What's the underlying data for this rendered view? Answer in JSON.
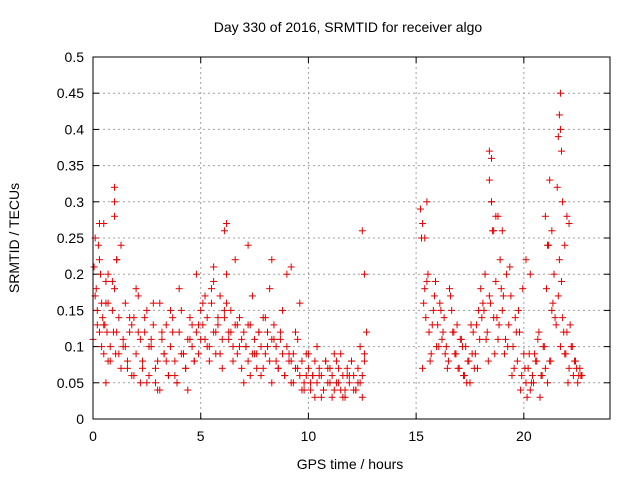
{
  "colors": {
    "series": "#e00000",
    "axis": "#000000",
    "grid": "#a0a0a0",
    "background": "#ffffff"
  },
  "chart_data": {
    "type": "scatter",
    "title": "Day 330 of 2016, SRMTID for receiver algo",
    "xlabel": "GPS time / hours",
    "ylabel": "SRMTID / TECUs",
    "xlim": [
      0,
      24
    ],
    "ylim": [
      0,
      0.5
    ],
    "grid": true,
    "legend": "none",
    "marker": "plus",
    "xticks": [
      {
        "value": 0,
        "label": "0"
      },
      {
        "value": 5,
        "label": "5"
      },
      {
        "value": 10,
        "label": "10"
      },
      {
        "value": 15,
        "label": "15"
      },
      {
        "value": 20,
        "label": "20"
      }
    ],
    "yticks": [
      {
        "value": 0,
        "label": "0"
      },
      {
        "value": 0.05,
        "label": "0.05"
      },
      {
        "value": 0.1,
        "label": "0.1"
      },
      {
        "value": 0.15,
        "label": "0.15"
      },
      {
        "value": 0.2,
        "label": "0.2"
      },
      {
        "value": 0.25,
        "label": "0.25"
      },
      {
        "value": 0.3,
        "label": "0.3"
      },
      {
        "value": 0.35,
        "label": "0.35"
      },
      {
        "value": 0.4,
        "label": "0.4"
      },
      {
        "value": 0.45,
        "label": "0.45"
      },
      {
        "value": 0.5,
        "label": "0.5"
      }
    ],
    "series": [
      {
        "name": "SRMTID",
        "x": [
          0.0,
          0.05,
          0.1,
          0.15,
          0.2,
          0.25,
          0.3,
          0.35,
          0.4,
          0.45,
          0.5,
          0.55,
          0.6,
          0.65,
          0.7,
          0.8,
          0.9,
          0.95,
          1.0,
          1.05,
          1.1,
          1.2,
          1.3,
          1.4,
          1.5,
          1.6,
          1.7,
          1.8,
          1.9,
          2.0,
          2.1,
          2.2,
          2.3,
          2.4,
          2.5,
          2.6,
          2.7,
          2.8,
          2.9,
          3.0,
          3.1,
          3.2,
          3.3,
          3.4,
          3.5,
          3.6,
          3.7,
          3.8,
          3.9,
          4.0,
          4.1,
          4.2,
          4.3,
          4.4,
          4.5,
          4.6,
          4.7,
          4.8,
          4.9,
          5.0,
          5.1,
          5.2,
          5.3,
          5.4,
          5.5,
          5.6,
          5.7,
          5.8,
          5.9,
          6.0,
          6.1,
          6.2,
          6.3,
          6.4,
          6.5,
          6.6,
          6.7,
          6.8,
          6.9,
          7.0,
          7.1,
          7.2,
          7.3,
          7.4,
          7.5,
          7.6,
          7.7,
          7.8,
          7.9,
          8.0,
          8.1,
          8.2,
          8.3,
          8.4,
          8.5,
          8.6,
          8.7,
          8.8,
          8.9,
          9.0,
          9.1,
          9.2,
          9.3,
          9.4,
          9.5,
          9.6,
          9.7,
          9.8,
          9.9,
          10.0,
          10.1,
          10.2,
          10.3,
          10.4,
          10.5,
          10.6,
          10.7,
          10.8,
          10.9,
          11.0,
          11.1,
          11.2,
          11.3,
          11.4,
          11.5,
          11.6,
          11.7,
          11.8,
          11.9,
          12.0,
          12.1,
          12.2,
          12.3,
          12.4,
          12.5,
          12.6,
          12.7,
          0.1,
          0.3,
          0.5,
          0.7,
          0.9,
          1.1,
          1.3,
          1.5,
          1.7,
          1.9,
          2.1,
          2.3,
          2.5,
          2.7,
          2.9,
          3.1,
          3.3,
          3.5,
          3.7,
          3.9,
          4.1,
          4.3,
          4.5,
          4.7,
          4.9,
          5.1,
          5.3,
          5.5,
          5.7,
          5.9,
          6.1,
          6.3,
          6.5,
          6.7,
          6.9,
          7.1,
          7.3,
          7.5,
          7.7,
          7.9,
          8.1,
          8.3,
          8.5,
          8.7,
          8.9,
          9.1,
          9.3,
          9.5,
          9.7,
          9.9,
          10.1,
          10.3,
          10.5,
          10.7,
          10.9,
          11.1,
          11.3,
          11.5,
          11.7,
          11.9,
          12.1,
          12.3,
          12.5,
          0.2,
          0.4,
          0.6,
          0.8,
          1.0,
          1.2,
          1.4,
          1.6,
          1.8,
          2.0,
          2.2,
          2.4,
          2.6,
          2.8,
          3.0,
          3.2,
          3.4,
          3.6,
          3.8,
          4.0,
          4.2,
          4.4,
          4.6,
          4.8,
          5.0,
          5.2,
          5.4,
          5.6,
          5.8,
          6.0,
          6.2,
          6.4,
          6.6,
          6.8,
          7.0,
          7.2,
          7.4,
          7.6,
          7.8,
          8.0,
          8.2,
          8.4,
          8.6,
          8.8,
          9.0,
          9.2,
          9.4,
          9.6,
          9.8,
          10.0,
          10.2,
          10.4,
          10.6,
          10.8,
          11.0,
          11.2,
          11.4,
          11.6,
          11.8,
          12.0,
          12.2,
          12.4,
          12.6,
          0.3,
          0.7,
          1.0,
          1.0,
          1.1,
          0.6,
          0.5,
          5.6,
          6.1,
          6.2,
          7.2,
          8.3,
          9.2,
          12.5,
          12.6,
          15.2,
          15.3,
          15.4,
          15.5,
          15.6,
          15.7,
          15.8,
          15.9,
          16.0,
          16.1,
          16.2,
          16.3,
          16.4,
          16.5,
          16.6,
          16.7,
          16.8,
          16.9,
          17.0,
          17.1,
          17.2,
          17.3,
          17.4,
          17.5,
          17.6,
          17.7,
          17.8,
          17.9,
          18.0,
          18.1,
          18.2,
          18.3,
          18.4,
          18.5,
          18.6,
          18.7,
          18.8,
          18.9,
          19.0,
          19.1,
          19.2,
          19.3,
          19.4,
          19.5,
          19.6,
          19.7,
          19.8,
          19.9,
          20.0,
          20.1,
          20.2,
          20.3,
          20.4,
          20.5,
          20.6,
          20.7,
          20.8,
          20.9,
          21.0,
          21.1,
          21.2,
          21.3,
          21.4,
          21.5,
          21.6,
          21.7,
          21.8,
          21.9,
          22.0,
          22.1,
          22.2,
          22.3,
          22.4,
          22.5,
          22.6,
          22.7,
          15.25,
          15.45,
          15.65,
          15.85,
          16.05,
          16.25,
          16.45,
          16.65,
          16.85,
          17.05,
          17.25,
          17.45,
          17.65,
          17.85,
          18.05,
          18.25,
          18.45,
          18.65,
          18.85,
          19.05,
          19.25,
          19.45,
          19.65,
          19.85,
          20.05,
          20.25,
          20.45,
          20.65,
          20.85,
          21.05,
          21.25,
          21.45,
          21.65,
          21.85,
          22.05,
          22.25,
          22.45,
          22.65,
          15.35,
          15.55,
          15.75,
          15.95,
          16.15,
          16.35,
          16.55,
          16.75,
          16.95,
          17.15,
          17.35,
          17.55,
          17.75,
          17.95,
          18.15,
          18.35,
          18.55,
          18.75,
          18.95,
          19.15,
          19.35,
          19.55,
          19.75,
          19.95,
          20.15,
          20.35,
          20.55,
          20.75,
          20.95,
          21.15,
          21.35,
          21.55,
          21.75,
          21.95,
          22.15,
          22.35,
          22.55,
          15.3,
          15.4,
          15.5,
          18.4,
          18.5,
          18.5,
          18.6,
          18.7,
          18.4,
          18.8,
          19.0,
          21.2,
          21.3,
          21.6,
          21.65,
          21.7,
          21.7,
          21.75,
          21.8,
          21.9,
          22.0,
          22.1,
          20.1,
          20.3,
          21.1,
          21.0
        ],
        "y": [
          0.11,
          0.21,
          0.25,
          0.18,
          0.15,
          0.24,
          0.12,
          0.2,
          0.16,
          0.14,
          0.09,
          0.13,
          0.19,
          0.12,
          0.16,
          0.1,
          0.15,
          0.12,
          0.18,
          0.09,
          0.22,
          0.14,
          0.24,
          0.1,
          0.16,
          0.08,
          0.12,
          0.06,
          0.14,
          0.09,
          0.17,
          0.11,
          0.07,
          0.12,
          0.15,
          0.06,
          0.1,
          0.13,
          0.05,
          0.08,
          0.16,
          0.11,
          0.09,
          0.13,
          0.06,
          0.1,
          0.14,
          0.08,
          0.05,
          0.12,
          0.15,
          0.09,
          0.07,
          0.11,
          0.14,
          0.1,
          0.08,
          0.12,
          0.09,
          0.15,
          0.13,
          0.11,
          0.14,
          0.1,
          0.16,
          0.12,
          0.09,
          0.13,
          0.17,
          0.11,
          0.14,
          0.2,
          0.12,
          0.15,
          0.1,
          0.13,
          0.09,
          0.14,
          0.11,
          0.12,
          0.1,
          0.08,
          0.13,
          0.09,
          0.11,
          0.07,
          0.12,
          0.1,
          0.14,
          0.09,
          0.12,
          0.08,
          0.11,
          0.13,
          0.1,
          0.07,
          0.12,
          0.09,
          0.06,
          0.1,
          0.08,
          0.05,
          0.09,
          0.07,
          0.11,
          0.06,
          0.08,
          0.05,
          0.09,
          0.07,
          0.04,
          0.06,
          0.08,
          0.05,
          0.07,
          0.06,
          0.04,
          0.08,
          0.05,
          0.07,
          0.06,
          0.04,
          0.08,
          0.05,
          0.09,
          0.06,
          0.04,
          0.07,
          0.05,
          0.08,
          0.06,
          0.04,
          0.07,
          0.05,
          0.06,
          0.09,
          0.12,
          0.17,
          0.22,
          0.13,
          0.08,
          0.19,
          0.12,
          0.07,
          0.1,
          0.14,
          0.06,
          0.12,
          0.08,
          0.05,
          0.11,
          0.07,
          0.04,
          0.09,
          0.06,
          0.12,
          0.05,
          0.09,
          0.07,
          0.11,
          0.08,
          0.13,
          0.16,
          0.1,
          0.18,
          0.12,
          0.09,
          0.15,
          0.11,
          0.08,
          0.13,
          0.07,
          0.1,
          0.06,
          0.09,
          0.12,
          0.07,
          0.1,
          0.05,
          0.08,
          0.11,
          0.06,
          0.09,
          0.05,
          0.07,
          0.04,
          0.06,
          0.05,
          0.03,
          0.06,
          0.04,
          0.07,
          0.03,
          0.05,
          0.04,
          0.03,
          0.06,
          0.04,
          0.05,
          0.03,
          0.13,
          0.1,
          0.16,
          0.08,
          0.3,
          0.09,
          0.11,
          0.07,
          0.13,
          0.18,
          0.05,
          0.14,
          0.1,
          0.16,
          0.04,
          0.12,
          0.08,
          0.15,
          0.06,
          0.18,
          0.09,
          0.04,
          0.13,
          0.2,
          0.11,
          0.17,
          0.08,
          0.19,
          0.14,
          0.07,
          0.16,
          0.12,
          0.22,
          0.1,
          0.05,
          0.13,
          0.17,
          0.09,
          0.06,
          0.14,
          0.18,
          0.11,
          0.07,
          0.15,
          0.2,
          0.08,
          0.12,
          0.16,
          0.04,
          0.09,
          0.06,
          0.1,
          0.03,
          0.08,
          0.05,
          0.09,
          0.07,
          0.03,
          0.06,
          0.08,
          0.04,
          0.1,
          0.08,
          0.27,
          0.2,
          0.28,
          0.32,
          0.22,
          0.05,
          0.27,
          0.21,
          0.26,
          0.27,
          0.24,
          0.22,
          0.21,
          0.26,
          0.2,
          0.29,
          0.07,
          0.18,
          0.3,
          0.12,
          0.09,
          0.15,
          0.19,
          0.13,
          0.16,
          0.11,
          0.14,
          0.1,
          0.08,
          0.17,
          0.12,
          0.09,
          0.13,
          0.07,
          0.11,
          0.06,
          0.1,
          0.08,
          0.05,
          0.09,
          0.07,
          0.13,
          0.15,
          0.18,
          0.16,
          0.2,
          0.12,
          0.17,
          0.3,
          0.14,
          0.19,
          0.11,
          0.22,
          0.15,
          0.09,
          0.2,
          0.13,
          0.17,
          0.1,
          0.14,
          0.08,
          0.12,
          0.06,
          0.09,
          0.05,
          0.07,
          0.04,
          0.06,
          0.09,
          0.08,
          0.12,
          0.06,
          0.1,
          0.07,
          0.05,
          0.08,
          0.15,
          0.2,
          0.13,
          0.17,
          0.1,
          0.14,
          0.09,
          0.12,
          0.07,
          0.1,
          0.06,
          0.08,
          0.05,
          0.07,
          0.06,
          0.25,
          0.14,
          0.08,
          0.17,
          0.1,
          0.12,
          0.07,
          0.15,
          0.09,
          0.11,
          0.06,
          0.08,
          0.12,
          0.07,
          0.14,
          0.11,
          0.16,
          0.09,
          0.13,
          0.17,
          0.1,
          0.06,
          0.12,
          0.04,
          0.07,
          0.09,
          0.05,
          0.11,
          0.06,
          0.18,
          0.08,
          0.14,
          0.22,
          0.12,
          0.05,
          0.1,
          0.07,
          0.06,
          0.16,
          0.2,
          0.13,
          0.1,
          0.15,
          0.09,
          0.18,
          0.12,
          0.07,
          0.1,
          0.05,
          0.13,
          0.09,
          0.11,
          0.15,
          0.08,
          0.26,
          0.14,
          0.18,
          0.11,
          0.21,
          0.07,
          0.15,
          0.18,
          0.03,
          0.05,
          0.08,
          0.03,
          0.1,
          0.24,
          0.16,
          0.32,
          0.19,
          0.09,
          0.13,
          0.08,
          0.06,
          0.27,
          0.25,
          0.19,
          0.33,
          0.36,
          0.3,
          0.26,
          0.28,
          0.37,
          0.28,
          0.26,
          0.33,
          0.26,
          0.39,
          0.42,
          0.45,
          0.4,
          0.37,
          0.3,
          0.24,
          0.28,
          0.27,
          0.22,
          0.2,
          0.24,
          0.28
        ]
      }
    ]
  }
}
